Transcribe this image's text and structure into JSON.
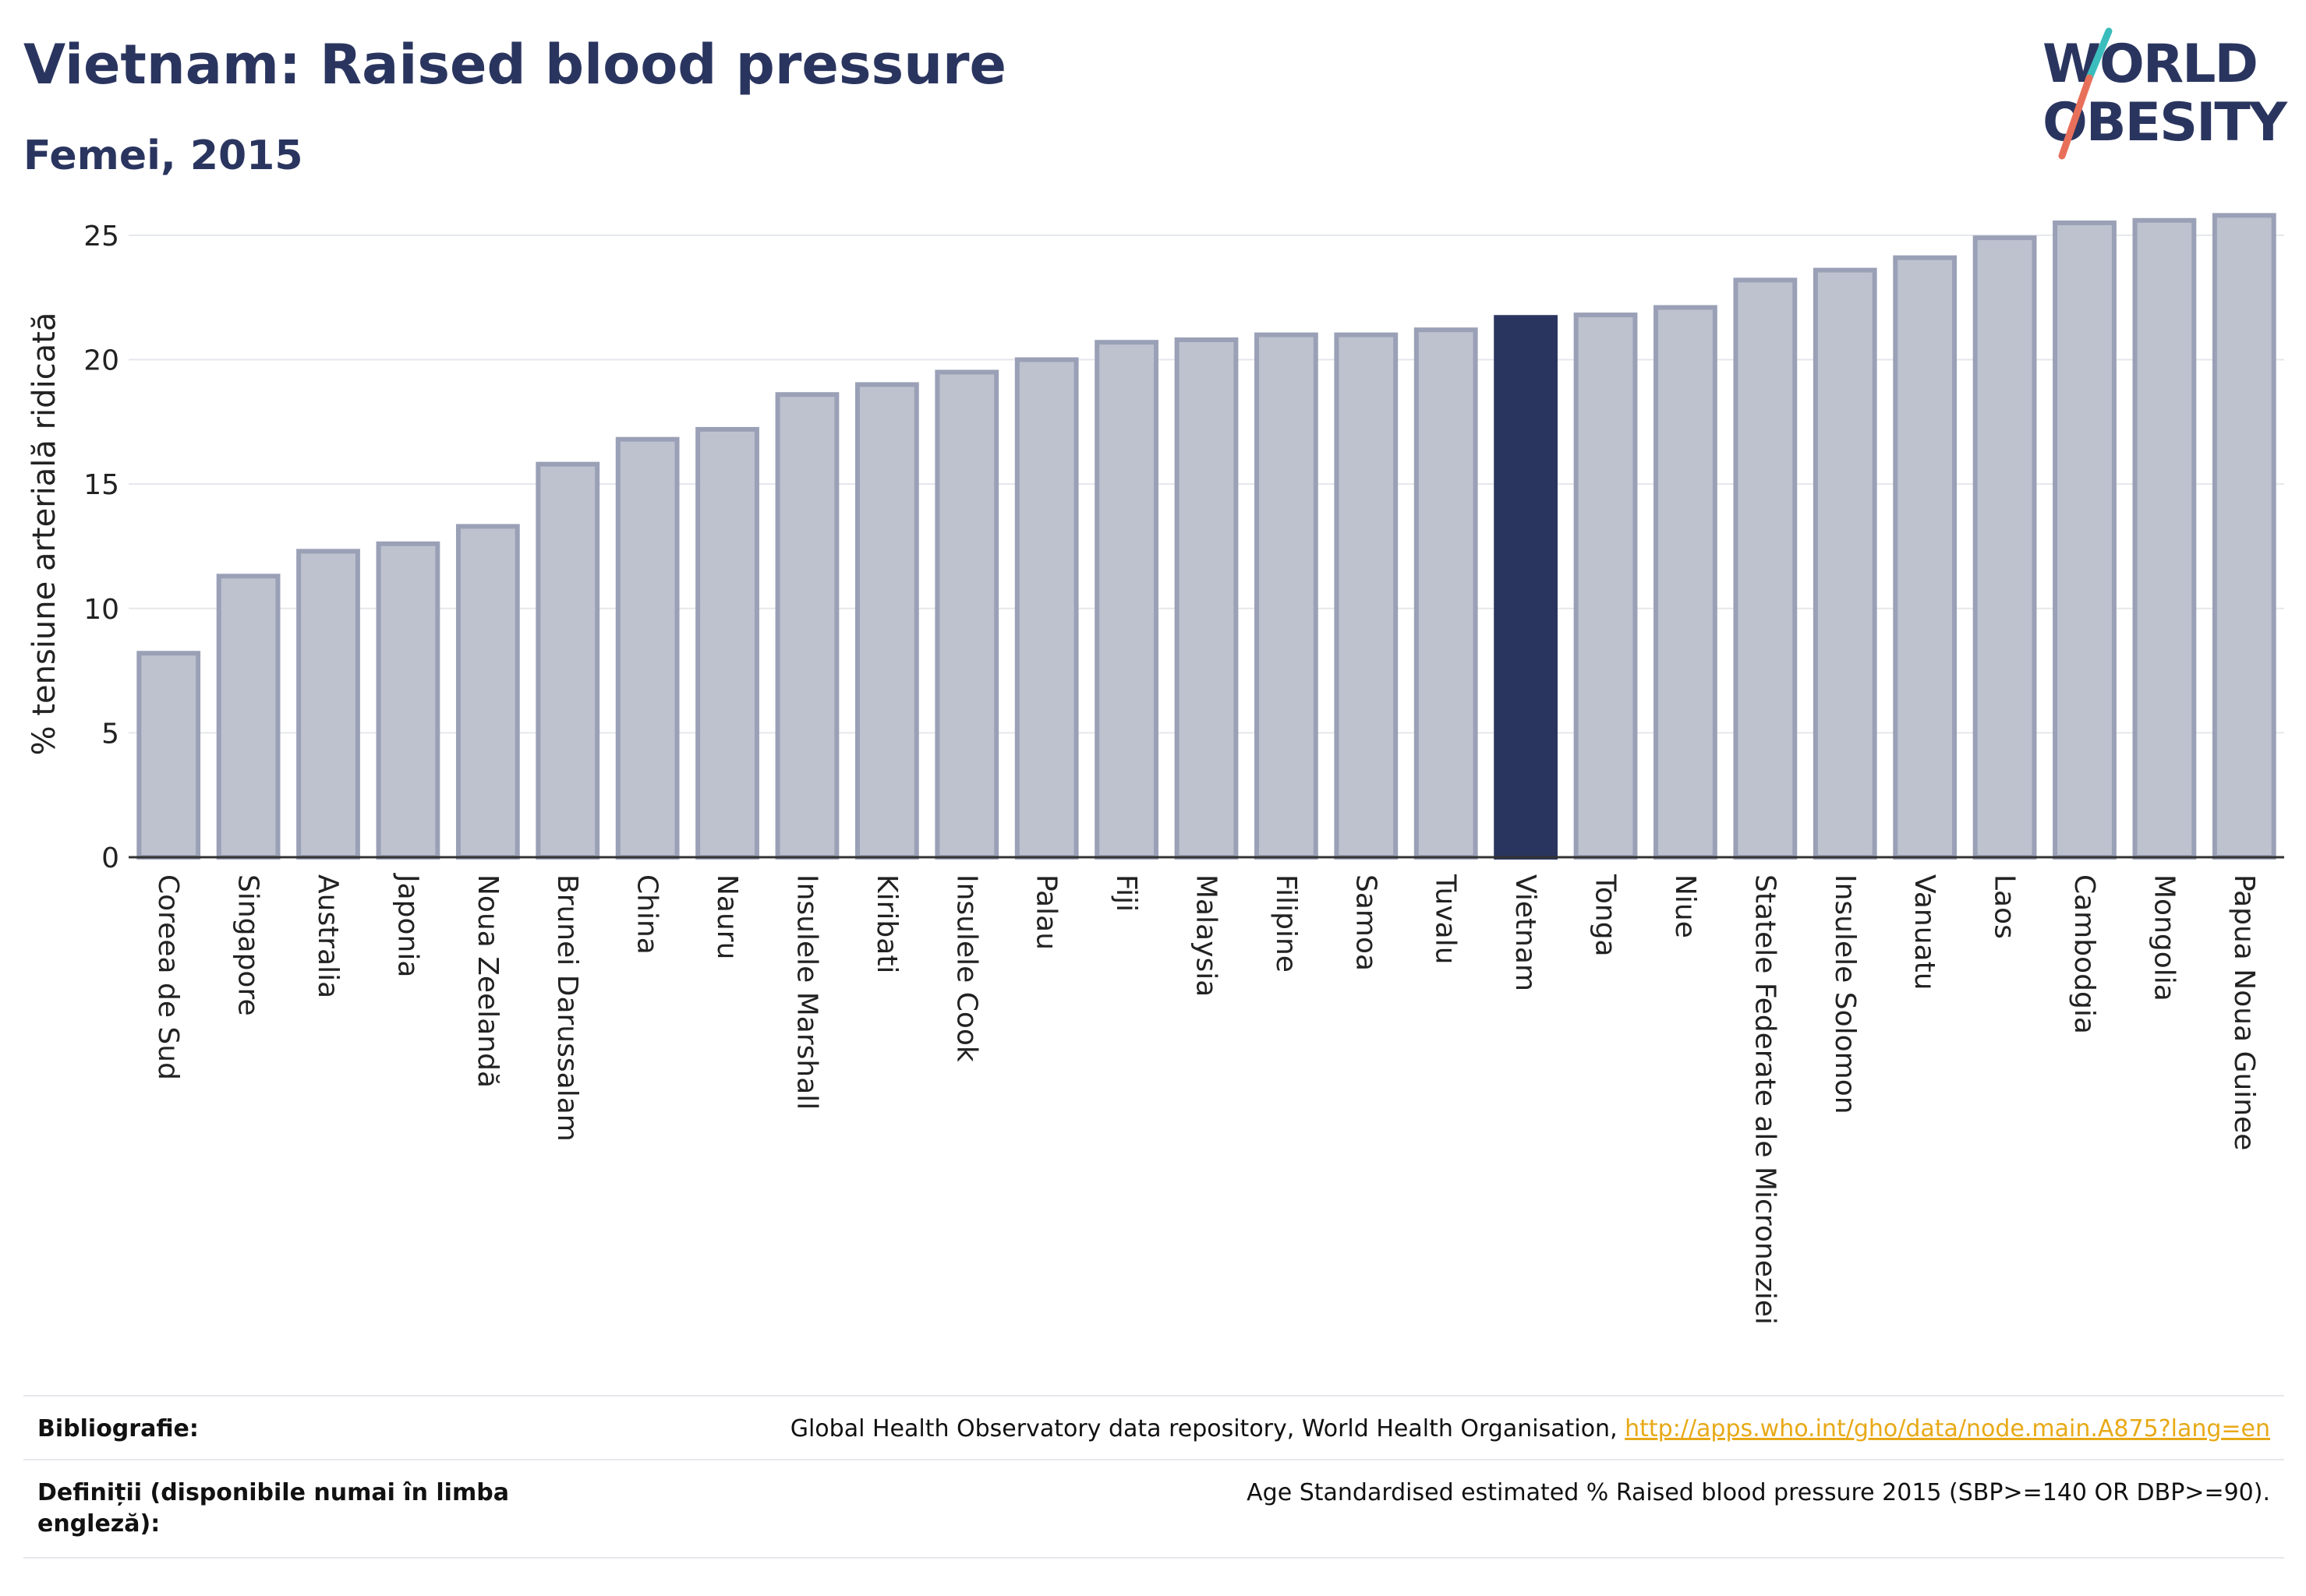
{
  "header": {
    "title": "Vietnam: Raised blood pressure",
    "subtitle": "Femei, 2015"
  },
  "logo": {
    "line1": "WORLD",
    "line2": "OBESITY"
  },
  "colors": {
    "highlight": "#2a355f",
    "bar_fill": "#bec2cf",
    "bar_stroke": "#9aa0b6",
    "grid": "#e6e7ec",
    "link": "#e8a917",
    "logo_teal": "#3bbdbd",
    "logo_coral": "#e8705a"
  },
  "chart_data": {
    "type": "bar",
    "ylabel": "% tensiune arterială ridicată",
    "ylim": [
      0,
      26
    ],
    "yticks": [
      0,
      5,
      10,
      15,
      20,
      25
    ],
    "grid": true,
    "highlight": "Vietnam",
    "categories": [
      "Coreea de Sud",
      "Singapore",
      "Australia",
      "Japonia",
      "Noua Zeelandă",
      "Brunei Darussalam",
      "China",
      "Nauru",
      "Insulele Marshall",
      "Kiribati",
      "Insulele Cook",
      "Palau",
      "Fiji",
      "Malaysia",
      "Filipine",
      "Samoa",
      "Tuvalu",
      "Vietnam",
      "Tonga",
      "Niue",
      "Statele Federate ale Microneziei",
      "Insulele Solomon",
      "Vanuatu",
      "Laos",
      "Cambodgia",
      "Mongolia",
      "Papua Noua Guinee"
    ],
    "values": [
      8.2,
      11.3,
      12.3,
      12.6,
      13.3,
      15.8,
      16.8,
      17.2,
      18.6,
      19.0,
      19.5,
      20.0,
      20.7,
      20.8,
      21.0,
      21.0,
      21.2,
      21.7,
      21.8,
      22.1,
      23.2,
      23.6,
      24.1,
      24.9,
      25.5,
      25.6,
      25.8
    ]
  },
  "footer": {
    "bibliography_label": "Bibliografie:",
    "bibliography_text": "Global Health Observatory data repository, World Health Organisation, ",
    "bibliography_link": "http://apps.who.int/gho/data/node.main.A875?lang=en",
    "definitions_label": "Definiții (disponibile numai în limba engleză):",
    "definitions_text": "Age Standardised estimated % Raised blood pressure 2015 (SBP>=140 OR DBP>=90)."
  }
}
